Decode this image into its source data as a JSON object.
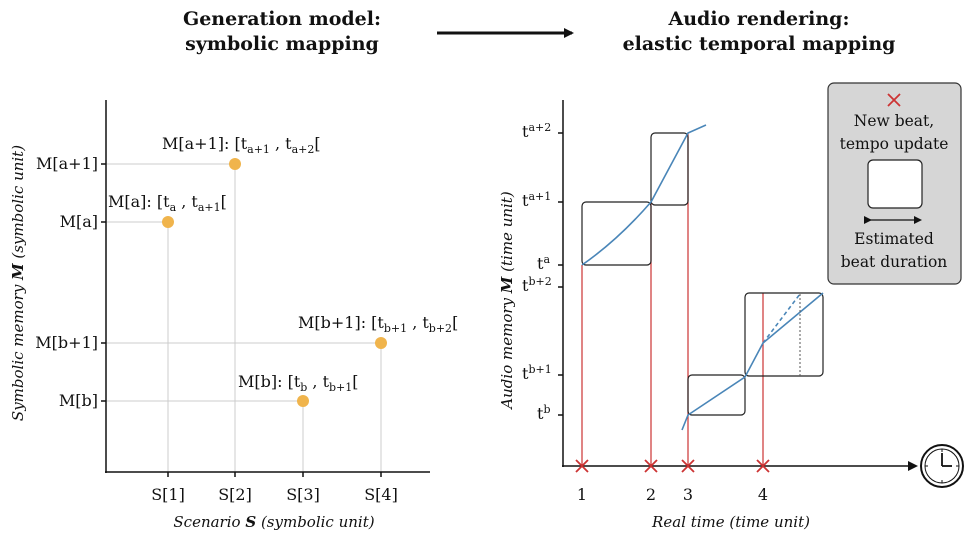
{
  "titles": {
    "left_line1": "Generation model:",
    "left_line2": "symbolic mapping",
    "right_line1": "Audio rendering:",
    "right_line2": "elastic temporal mapping"
  },
  "left_diagram": {
    "y_axis_label_prefix": "Symbolic memory ",
    "y_axis_label_symbol": "M",
    "y_axis_label_suffix": " (symbolic unit)",
    "x_axis_label_prefix": "Scenario ",
    "x_axis_label_symbol": "S",
    "x_axis_label_suffix": " (symbolic unit)",
    "x_ticks": [
      "S[1]",
      "S[2]",
      "S[3]",
      "S[4]"
    ],
    "y_ticks": [
      "M[a+1]",
      "M[a]",
      "M[b+1]",
      "M[b]"
    ],
    "points": [
      {
        "s": "S[1]",
        "m": "M[a]",
        "label": "M[a]: [t",
        "sub1": "a",
        "mid": " , t",
        "sub2": "a+1",
        "end": "["
      },
      {
        "s": "S[2]",
        "m": "M[a+1]",
        "label": "M[a+1]: [t",
        "sub1": "a+1",
        "mid": " , t",
        "sub2": "a+2",
        "end": "["
      },
      {
        "s": "S[3]",
        "m": "M[b]",
        "label": "M[b]: [t",
        "sub1": "b",
        "mid": " , t",
        "sub2": "b+1",
        "end": "["
      },
      {
        "s": "S[4]",
        "m": "M[b+1]",
        "label": "M[b+1]: [t",
        "sub1": "b+1",
        "mid": " , t",
        "sub2": "b+2",
        "end": "["
      }
    ],
    "point_color": "#f0b44c"
  },
  "right_diagram": {
    "y_axis_label_prefix": "Audio memory ",
    "y_axis_label_symbol": "M",
    "y_axis_label_suffix": " (time unit)",
    "x_axis_label": "Real time (time unit)",
    "x_ticks": [
      "1",
      "2",
      "3",
      "4"
    ],
    "y_ticks": [
      {
        "base": "t",
        "sub": "a+2"
      },
      {
        "base": "t",
        "sub": "a+1"
      },
      {
        "base": "t",
        "sub": "a"
      },
      {
        "base": "t",
        "sub": "b+2"
      },
      {
        "base": "t",
        "sub": "b+1"
      },
      {
        "base": "t",
        "sub": "b"
      }
    ],
    "line_color": "#4a86b8",
    "beat_color": "#cc3333",
    "clock_icon": "clock-icon"
  },
  "legend": {
    "new_beat_line1": "New beat,",
    "new_beat_line2": "tempo update",
    "duration_line1": "Estimated",
    "duration_line2": "beat duration",
    "background": "#d6d6d6"
  },
  "arrow_icon": "right-arrow-icon"
}
